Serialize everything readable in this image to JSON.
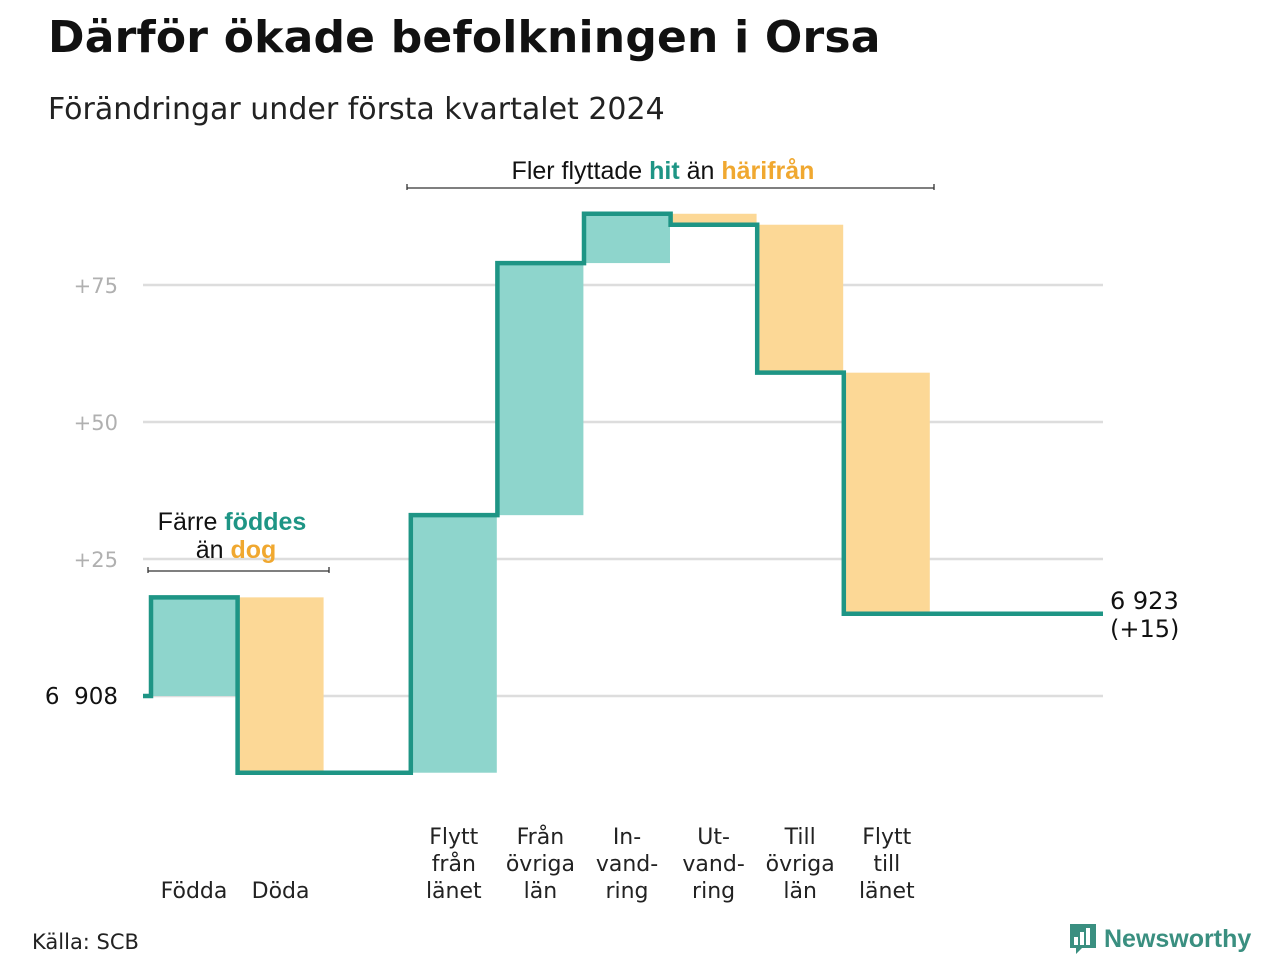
{
  "title": "Därför ökade befolkningen i Orsa",
  "subtitle": "Förändringar under första kvartalet 2024",
  "source": "Källa: SCB",
  "brand": {
    "name": "Newsworthy",
    "icon": "bar-chart-logo-icon"
  },
  "colors": {
    "increase_fill": "#8ed5cc",
    "decrease_fill": "#fcd896",
    "line": "#1e9585",
    "accent_green": "#1e9585",
    "accent_orange": "#f0a830",
    "grid": "#dddddd"
  },
  "annotations": {
    "births_deaths": {
      "line1_a": "Färre ",
      "line1_b": "föddes",
      "line2_a": "än ",
      "line2_b": "dog"
    },
    "migration": {
      "part_a": "Fler flyttade ",
      "part_b": "hit",
      "part_c": " än ",
      "part_d": "härifrån"
    }
  },
  "start_label": "6  908",
  "end_label": {
    "line1": "6 923",
    "line2": "(+15)"
  },
  "chart_data": {
    "type": "bar",
    "subtype": "waterfall",
    "y_ticks": [
      {
        "value": 25,
        "label": "+25"
      },
      {
        "value": 50,
        "label": "+50"
      },
      {
        "value": 75,
        "label": "+75"
      }
    ],
    "ylim": [
      -20,
      90
    ],
    "start": {
      "value": 0,
      "label": "6  908"
    },
    "end": {
      "value": 15,
      "label": "6 923 (+15)"
    },
    "steps": [
      {
        "category": [
          "Födda"
        ],
        "change": 18,
        "kind": "increase"
      },
      {
        "category": [
          "Döda"
        ],
        "change": -32,
        "kind": "decrease"
      },
      {
        "category": [],
        "change": 0,
        "kind": "none"
      },
      {
        "category": [
          "Flytt",
          "från",
          "länet"
        ],
        "change": 47,
        "kind": "increase"
      },
      {
        "category": [
          "Från",
          "övriga",
          "län"
        ],
        "change": 46,
        "kind": "increase"
      },
      {
        "category": [
          "In-",
          "vand-",
          "ring"
        ],
        "change": 9,
        "kind": "increase"
      },
      {
        "category": [
          "Ut-",
          "vand-",
          "ring"
        ],
        "change": -2,
        "kind": "decrease"
      },
      {
        "category": [
          "Till",
          "övriga",
          "län"
        ],
        "change": -27,
        "kind": "decrease"
      },
      {
        "category": [
          "Flytt",
          "till",
          "länet"
        ],
        "change": -44,
        "kind": "decrease"
      }
    ]
  }
}
